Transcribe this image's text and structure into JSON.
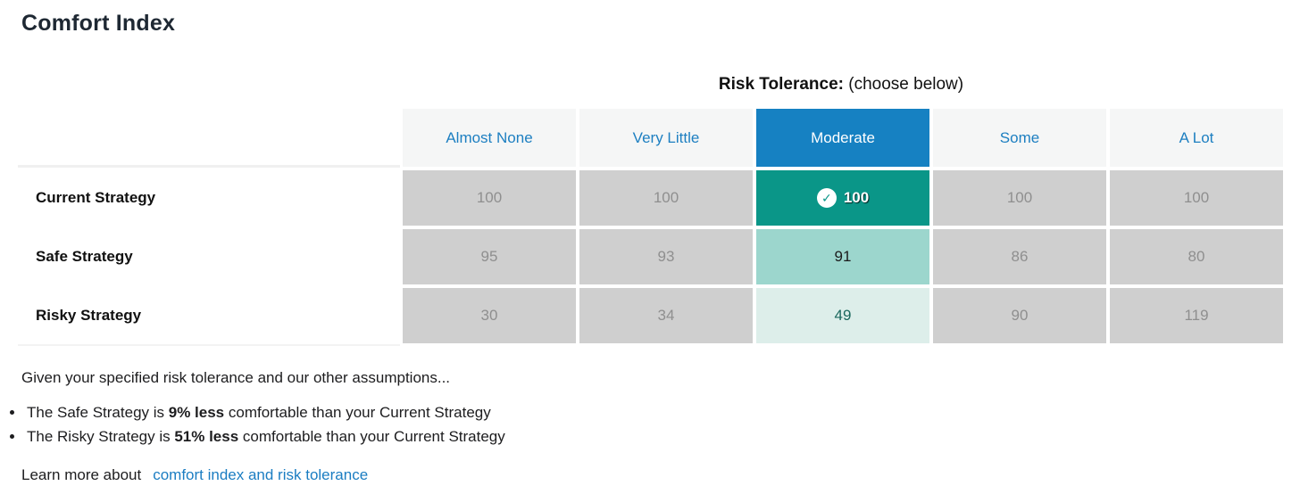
{
  "page": {
    "title": "Comfort Index"
  },
  "table": {
    "header_bold": "Risk Tolerance:",
    "header_rest": " (choose below)",
    "columns": [
      "Almost None",
      "Very Little",
      "Moderate",
      "Some",
      "A Lot"
    ],
    "selected_column": "Moderate",
    "selected_column_index": 2,
    "check_icon": "✓",
    "rows": [
      {
        "label": "Current Strategy",
        "values": [
          "100",
          "100",
          "100",
          "100",
          "100"
        ]
      },
      {
        "label": "Safe Strategy",
        "values": [
          "95",
          "93",
          "91",
          "86",
          "80"
        ]
      },
      {
        "label": "Risky Strategy",
        "values": [
          "30",
          "34",
          "49",
          "90",
          "119"
        ]
      }
    ]
  },
  "summary": {
    "intro": "Given your specified risk tolerance and our other assumptions...",
    "bullets": [
      {
        "pre": "The Safe Strategy is ",
        "bold": "9% less",
        "post": " comfortable than your Current Strategy"
      },
      {
        "pre": "The Risky Strategy is ",
        "bold": "51% less",
        "post": " comfortable than your Current Strategy"
      }
    ]
  },
  "footer": {
    "learn_more_label": "Learn more about",
    "learn_more_link": "comfort index and risk tolerance"
  },
  "colors": {
    "selected_header_bg": "#1681c2",
    "header_link_text": "#1d7fc1",
    "selected_cell_strong": "#0a9688",
    "selected_cell_medium": "#9cd6cd",
    "selected_cell_light": "#ddeeea",
    "unselected_cell_bg": "#cfcfcf",
    "unselected_cell_text": "#8f8f8f",
    "header_row_bg": "#f5f6f6",
    "link_text": "#1b7dc2"
  }
}
